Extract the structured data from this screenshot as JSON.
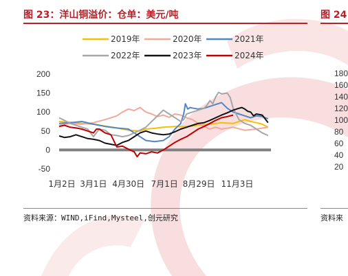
{
  "header": {
    "figure_title": "图 23：洋山铜溢价：仓单：美元/吨",
    "next_figure_title": "图 24"
  },
  "footer": {
    "source": "资料来源：WIND,iFind,Mysteel,创元研究",
    "next_source": "资料来"
  },
  "next_chart_ticks": [
    "180",
    "160",
    "140",
    "120",
    "100",
    "80",
    "60",
    "40",
    "20"
  ],
  "colors": {
    "title": "#b81f27",
    "watermark": "#f3c3c3",
    "s2019": "#f5c000",
    "s2020": "#f4a89a",
    "s2021": "#4f86c6",
    "s2022": "#a6a6a6",
    "s2023": "#111111",
    "s2024": "#c00000",
    "zero": "#7f7f7f"
  },
  "chart_data": {
    "type": "line",
    "title": "",
    "xlabel": "",
    "ylabel": "",
    "ylim": [
      -50,
      200
    ],
    "yticks": [
      -50,
      0,
      50,
      100,
      150,
      200
    ],
    "xticks": [
      {
        "label": "1月2日",
        "day": 1
      },
      {
        "label": "3月1日",
        "day": 60
      },
      {
        "label": "4月30日",
        "day": 120
      },
      {
        "label": "7月1日",
        "day": 182
      },
      {
        "label": "8月29日",
        "day": 241
      },
      {
        "label": "11月3日",
        "day": 307
      }
    ],
    "xlim": [
      1,
      365
    ],
    "legend_position": "top",
    "series": [
      {
        "name": "2019年",
        "color_key": "s2019",
        "points": [
          [
            1,
            75
          ],
          [
            20,
            73
          ],
          [
            40,
            70
          ],
          [
            60,
            68
          ],
          [
            80,
            63
          ],
          [
            100,
            58
          ],
          [
            120,
            52
          ],
          [
            140,
            50
          ],
          [
            150,
            55
          ],
          [
            165,
            57
          ],
          [
            180,
            60
          ],
          [
            200,
            62
          ],
          [
            220,
            62
          ],
          [
            240,
            65
          ],
          [
            260,
            68
          ],
          [
            280,
            72
          ],
          [
            300,
            70
          ],
          [
            310,
            75
          ],
          [
            320,
            80
          ],
          [
            330,
            75
          ],
          [
            340,
            72
          ],
          [
            350,
            68
          ],
          [
            360,
            60
          ]
        ]
      },
      {
        "name": "2020年",
        "color_key": "s2020",
        "points": [
          [
            1,
            65
          ],
          [
            20,
            70
          ],
          [
            40,
            68
          ],
          [
            60,
            72
          ],
          [
            80,
            80
          ],
          [
            100,
            90
          ],
          [
            110,
            100
          ],
          [
            120,
            108
          ],
          [
            130,
            104
          ],
          [
            140,
            112
          ],
          [
            150,
            100
          ],
          [
            160,
            95
          ],
          [
            170,
            88
          ],
          [
            180,
            92
          ],
          [
            190,
            86
          ],
          [
            200,
            95
          ],
          [
            210,
            92
          ],
          [
            220,
            85
          ],
          [
            230,
            80
          ],
          [
            240,
            70
          ],
          [
            250,
            62
          ],
          [
            260,
            55
          ],
          [
            270,
            60
          ],
          [
            280,
            55
          ],
          [
            300,
            60
          ],
          [
            320,
            52
          ],
          [
            340,
            55
          ],
          [
            360,
            60
          ]
        ]
      },
      {
        "name": "2021年",
        "color_key": "s2021",
        "points": [
          [
            1,
            70
          ],
          [
            20,
            72
          ],
          [
            40,
            75
          ],
          [
            60,
            68
          ],
          [
            80,
            62
          ],
          [
            100,
            58
          ],
          [
            120,
            55
          ],
          [
            130,
            45
          ],
          [
            140,
            35
          ],
          [
            150,
            25
          ],
          [
            165,
            22
          ],
          [
            180,
            25
          ],
          [
            190,
            35
          ],
          [
            200,
            55
          ],
          [
            210,
            70
          ],
          [
            215,
            95
          ],
          [
            218,
            122
          ],
          [
            222,
            108
          ],
          [
            226,
            112
          ],
          [
            232,
            110
          ],
          [
            240,
            108
          ],
          [
            250,
            110
          ],
          [
            260,
            115
          ],
          [
            270,
            120
          ],
          [
            280,
            125
          ],
          [
            290,
            110
          ],
          [
            300,
            100
          ],
          [
            310,
            95
          ],
          [
            320,
            90
          ],
          [
            330,
            85
          ],
          [
            340,
            90
          ],
          [
            350,
            88
          ],
          [
            360,
            82
          ]
        ]
      },
      {
        "name": "2022年",
        "color_key": "s2022",
        "points": [
          [
            1,
            85
          ],
          [
            10,
            78
          ],
          [
            20,
            70
          ],
          [
            30,
            65
          ],
          [
            40,
            60
          ],
          [
            50,
            55
          ],
          [
            60,
            35
          ],
          [
            70,
            55
          ],
          [
            80,
            52
          ],
          [
            90,
            40
          ],
          [
            100,
            38
          ],
          [
            110,
            35
          ],
          [
            120,
            38
          ],
          [
            130,
            45
          ],
          [
            140,
            52
          ],
          [
            150,
            60
          ],
          [
            160,
            75
          ],
          [
            170,
            90
          ],
          [
            180,
            105
          ],
          [
            190,
            95
          ],
          [
            200,
            85
          ],
          [
            210,
            75
          ],
          [
            215,
            80
          ],
          [
            220,
            95
          ],
          [
            230,
            100
          ],
          [
            240,
            105
          ],
          [
            250,
            110
          ],
          [
            255,
            118
          ],
          [
            260,
            130
          ],
          [
            265,
            122
          ],
          [
            270,
            140
          ],
          [
            275,
            152
          ],
          [
            280,
            148
          ],
          [
            290,
            150
          ],
          [
            295,
            138
          ],
          [
            300,
            110
          ],
          [
            310,
            80
          ],
          [
            320,
            70
          ],
          [
            330,
            65
          ],
          [
            340,
            55
          ],
          [
            350,
            45
          ],
          [
            360,
            38
          ]
        ]
      },
      {
        "name": "2023年",
        "color_key": "s2023",
        "points": [
          [
            1,
            37
          ],
          [
            10,
            33
          ],
          [
            20,
            35
          ],
          [
            30,
            40
          ],
          [
            40,
            35
          ],
          [
            50,
            30
          ],
          [
            60,
            28
          ],
          [
            70,
            25
          ],
          [
            80,
            18
          ],
          [
            90,
            15
          ],
          [
            100,
            12
          ],
          [
            110,
            20
          ],
          [
            120,
            25
          ],
          [
            130,
            35
          ],
          [
            140,
            45
          ],
          [
            150,
            50
          ],
          [
            160,
            45
          ],
          [
            170,
            42
          ],
          [
            180,
            40
          ],
          [
            190,
            42
          ],
          [
            200,
            48
          ],
          [
            210,
            55
          ],
          [
            220,
            60
          ],
          [
            230,
            65
          ],
          [
            240,
            70
          ],
          [
            250,
            72
          ],
          [
            260,
            78
          ],
          [
            270,
            85
          ],
          [
            280,
            92
          ],
          [
            290,
            98
          ],
          [
            300,
            105
          ],
          [
            310,
            110
          ],
          [
            315,
            112
          ],
          [
            320,
            108
          ],
          [
            325,
            102
          ],
          [
            330,
            100
          ],
          [
            335,
            90
          ],
          [
            340,
            95
          ],
          [
            350,
            92
          ],
          [
            360,
            72
          ]
        ]
      },
      {
        "name": "2024年",
        "color_key": "s2024",
        "points": [
          [
            1,
            62
          ],
          [
            10,
            65
          ],
          [
            20,
            60
          ],
          [
            30,
            58
          ],
          [
            40,
            55
          ],
          [
            50,
            50
          ],
          [
            60,
            45
          ],
          [
            65,
            55
          ],
          [
            70,
            55
          ],
          [
            80,
            45
          ],
          [
            90,
            40
          ],
          [
            100,
            8
          ],
          [
            110,
            10
          ],
          [
            120,
            2
          ],
          [
            130,
            -5
          ],
          [
            135,
            -18
          ],
          [
            140,
            -8
          ],
          [
            150,
            -10
          ],
          [
            160,
            -5
          ],
          [
            170,
            -8
          ],
          [
            180,
            0
          ],
          [
            190,
            10
          ],
          [
            200,
            20
          ],
          [
            210,
            28
          ],
          [
            220,
            35
          ],
          [
            230,
            45
          ],
          [
            240,
            55
          ],
          [
            250,
            62
          ],
          [
            260,
            70
          ],
          [
            270,
            78
          ],
          [
            280,
            85
          ],
          [
            290,
            88
          ],
          [
            300,
            92
          ]
        ]
      }
    ]
  }
}
